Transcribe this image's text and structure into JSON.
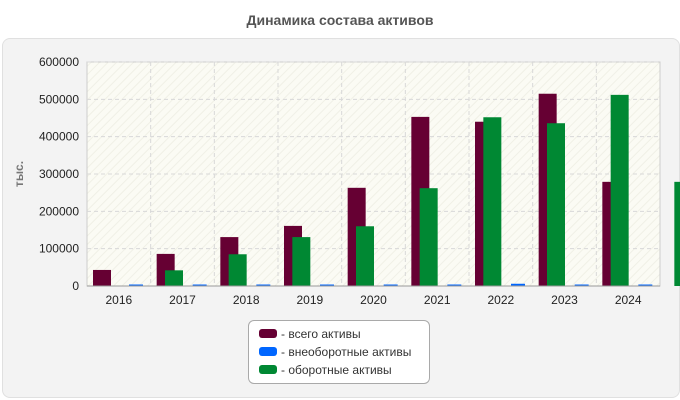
{
  "chart_data": {
    "type": "bar",
    "title": "Динамика состава активов",
    "ylabel": "тыс.",
    "xlabel": "",
    "categories": [
      "2016",
      "2017",
      "2018",
      "2019",
      "2020",
      "2021",
      "2022",
      "2023",
      "2024"
    ],
    "ylim": [
      0,
      600000
    ],
    "yticks": [
      "600000",
      "500000",
      "400000",
      "300000",
      "200000",
      "100000",
      "0"
    ],
    "grid": true,
    "legend_position": "bottom",
    "series": [
      {
        "name": "- всего активы",
        "color": "#660033",
        "values": [
          43000,
          86000,
          131000,
          161000,
          263000,
          453000,
          440000,
          515000,
          279000
        ]
      },
      {
        "name": "- внеоборотные активы",
        "color": "#0066ff",
        "values": [
          2000,
          2000,
          2000,
          2000,
          2000,
          3000,
          6000,
          3000,
          3000
        ]
      },
      {
        "name": "- оборотные активы",
        "color": "#008833",
        "values": [
          42000,
          85000,
          131000,
          160000,
          262000,
          452000,
          436000,
          512000,
          279000
        ]
      }
    ]
  }
}
